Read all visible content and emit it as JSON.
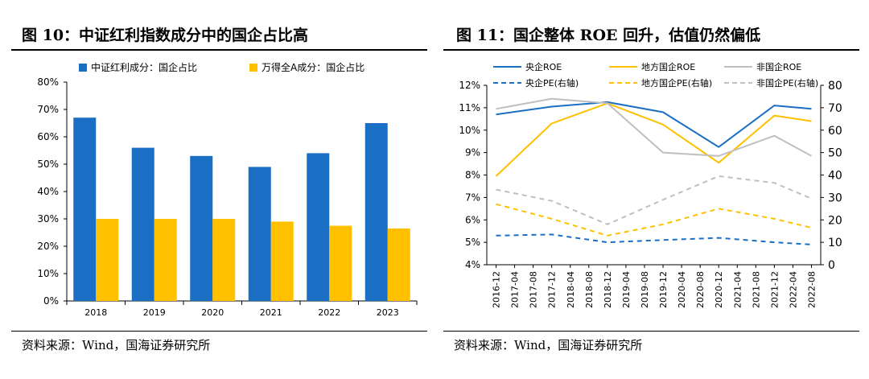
{
  "left": {
    "title": "图 10：中证红利指数成分中的国企占比高",
    "source": "资料来源：Wind，国海证券研究所"
  },
  "right": {
    "title": "图 11：国企整体 ROE 回升，估值仍然偏低",
    "source": "资料来源：Wind，国海证券研究所"
  },
  "chart_data": [
    {
      "type": "bar",
      "categories": [
        "2018",
        "2019",
        "2020",
        "2021",
        "2022",
        "2023"
      ],
      "series": [
        {
          "name": "中证红利成分：国企占比",
          "color": "#1a6fc4",
          "values": [
            67,
            56,
            53,
            49,
            54,
            65
          ]
        },
        {
          "name": "万得全A成分：国企占比",
          "color": "#ffc000",
          "values": [
            30,
            30,
            30,
            29,
            27.5,
            26.5
          ]
        }
      ],
      "ylim": [
        0,
        80
      ],
      "yticks": [
        "0%",
        "10%",
        "20%",
        "30%",
        "40%",
        "50%",
        "60%",
        "70%",
        "80%"
      ],
      "title": "",
      "xlabel": "",
      "ylabel": ""
    },
    {
      "type": "line",
      "x": [
        "2016-12",
        "2017-04",
        "2017-08",
        "2017-12",
        "2018-04",
        "2018-08",
        "2018-12",
        "2019-04",
        "2019-08",
        "2019-12",
        "2020-04",
        "2020-08",
        "2020-12",
        "2021-04",
        "2021-08",
        "2021-12",
        "2022-04",
        "2022-08"
      ],
      "series": [
        {
          "name": "央企ROE",
          "axis": "left",
          "dash": false,
          "color": "#1a6fc4",
          "points": [
            [
              0,
              10.7
            ],
            [
              3,
              11.05
            ],
            [
              6,
              11.25
            ],
            [
              9,
              10.8
            ],
            [
              12,
              9.25
            ],
            [
              15,
              11.1
            ],
            [
              17,
              10.95
            ]
          ]
        },
        {
          "name": "地方国企ROE",
          "axis": "left",
          "dash": false,
          "color": "#ffc000",
          "points": [
            [
              0,
              7.95
            ],
            [
              3,
              10.3
            ],
            [
              6,
              11.2
            ],
            [
              9,
              10.25
            ],
            [
              12,
              8.55
            ],
            [
              15,
              10.65
            ],
            [
              17,
              10.4
            ]
          ]
        },
        {
          "name": "非国企ROE",
          "axis": "left",
          "dash": false,
          "color": "#bfbfbf",
          "points": [
            [
              0,
              10.95
            ],
            [
              3,
              11.4
            ],
            [
              6,
              11.2
            ],
            [
              9,
              9.0
            ],
            [
              12,
              8.85
            ],
            [
              15,
              9.75
            ],
            [
              17,
              8.85
            ]
          ]
        },
        {
          "name": "央企PE(右轴)",
          "axis": "right",
          "dash": true,
          "color": "#1a6fc4",
          "points": [
            [
              0,
              13
            ],
            [
              3,
              13.5
            ],
            [
              6,
              10
            ],
            [
              9,
              11
            ],
            [
              12,
              12
            ],
            [
              15,
              10
            ],
            [
              17,
              9
            ]
          ]
        },
        {
          "name": "地方国企PE(右轴)",
          "axis": "right",
          "dash": true,
          "color": "#ffc000",
          "points": [
            [
              0,
              27
            ],
            [
              3,
              20.5
            ],
            [
              6,
              13
            ],
            [
              9,
              18
            ],
            [
              12,
              25
            ],
            [
              15,
              20.5
            ],
            [
              17,
              16.5
            ]
          ]
        },
        {
          "name": "非国企PE(右轴)",
          "axis": "right",
          "dash": true,
          "color": "#bfbfbf",
          "points": [
            [
              0,
              33.5
            ],
            [
              3,
              28.5
            ],
            [
              6,
              18
            ],
            [
              9,
              29
            ],
            [
              12,
              39.5
            ],
            [
              15,
              36.5
            ],
            [
              17,
              29.5
            ]
          ]
        }
      ],
      "ylim_left": [
        4,
        12
      ],
      "yticks_left": [
        "4%",
        "5%",
        "6%",
        "7%",
        "8%",
        "9%",
        "10%",
        "11%",
        "12%"
      ],
      "ylim_right": [
        0,
        80
      ],
      "yticks_right": [
        "0",
        "10",
        "20",
        "30",
        "40",
        "50",
        "60",
        "70",
        "80"
      ],
      "title": "",
      "xlabel": "",
      "ylabel": ""
    }
  ]
}
